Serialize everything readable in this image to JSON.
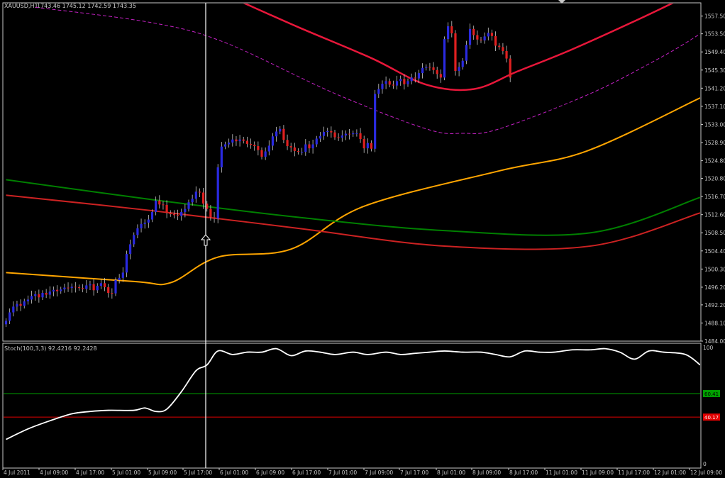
{
  "header": {
    "symbol_label": "XAUUSD,H1",
    "ohlc_label": "1743.46 1745.12 1742.59 1743.35"
  },
  "colors": {
    "background": "#000000",
    "frame": "#c8c8c8",
    "text": "#c8c8c8",
    "bull_candle": "#2a2ae0",
    "bear_candle": "#e02020",
    "ma_orange": "#ffa500",
    "ma_green": "#008000",
    "ma_red": "#cc2222",
    "env_upper": "#e8173a",
    "env_dashed": "#c020c0",
    "stoch_line": "#ffffff",
    "level_high": "#00a000",
    "level_low": "#e00000",
    "crosshair": "#ffffff"
  },
  "chart_data": [
    {
      "type": "candlestick",
      "title": "XAUUSD,H1",
      "ylim": [
        1484.0,
        1560.5
      ],
      "ytick_labels": [
        "1557.50",
        "1553.50",
        "1549.40",
        "1545.30",
        "1541.20",
        "1537.10",
        "1533.00",
        "1528.90",
        "1524.80",
        "1520.80",
        "1516.70",
        "1512.60",
        "1508.50",
        "1504.40",
        "1500.30",
        "1496.20",
        "1492.20",
        "1488.10",
        "1484.00"
      ],
      "xtick_labels": [
        "4 Jul 2011",
        "4 Jul 09:00",
        "4 Jul 17:00",
        "5 Jul 01:00",
        "5 Jul 09:00",
        "5 Jul 17:00",
        "6 Jul 01:00",
        "6 Jul 09:00",
        "6 Jul 17:00",
        "7 Jul 01:00",
        "7 Jul 09:00",
        "7 Jul 17:00",
        "8 Jul 01:00",
        "8 Jul 09:00",
        "8 Jul 17:00",
        "11 Jul 01:00",
        "11 Jul 09:00",
        "11 Jul 17:00",
        "12 Jul 01:00",
        "12 Jul 09:00"
      ],
      "closes": [
        1488.6,
        1490.5,
        1491.8,
        1492.4,
        1492.0,
        1493.0,
        1493.4,
        1494.2,
        1494.6,
        1493.9,
        1494.9,
        1494.5,
        1495.2,
        1495.6,
        1495.3,
        1495.7,
        1496.1,
        1496.0,
        1496.3,
        1496.2,
        1496.0,
        1495.8,
        1496.6,
        1496.9,
        1495.5,
        1496.5,
        1497.1,
        1496.2,
        1494.9,
        1494.8,
        1497.8,
        1498.3,
        1499.5,
        1503.7,
        1505.9,
        1508.0,
        1509.5,
        1510.5,
        1510.8,
        1511.5,
        1513.2,
        1515.8,
        1514.9,
        1514.8,
        1513.0,
        1512.7,
        1512.5,
        1512.3,
        1513.2,
        1513.9,
        1515.4,
        1516.2,
        1517.8,
        1517.6,
        1515.1,
        1513.9,
        1512.0,
        1511.7,
        1523.3,
        1528.0,
        1528.5,
        1528.9,
        1529.6,
        1529.2,
        1529.6,
        1529.3,
        1528.6,
        1528.4,
        1528.1,
        1527.2,
        1525.7,
        1526.9,
        1528.2,
        1530.3,
        1531.4,
        1532.0,
        1529.5,
        1528.1,
        1527.8,
        1527.0,
        1526.8,
        1526.8,
        1528.5,
        1527.6,
        1528.5,
        1529.8,
        1530.4,
        1531.3,
        1531.5,
        1531.2,
        1530.1,
        1530.0,
        1530.5,
        1530.9,
        1530.8,
        1531.0,
        1531.0,
        1529.7,
        1527.6,
        1528.8,
        1527.5,
        1539.9,
        1541.0,
        1542.2,
        1542.8,
        1542.0,
        1541.8,
        1542.8,
        1543.3,
        1542.1,
        1542.8,
        1543.6,
        1543.4,
        1544.6,
        1545.8,
        1546.0,
        1545.9,
        1545.3,
        1544.4,
        1543.6,
        1552.3,
        1555.2,
        1553.6,
        1545.1,
        1546.0,
        1547.4,
        1551.0,
        1554.6,
        1553.2,
        1552.2,
        1552.0,
        1552.9,
        1553.7,
        1553.0,
        1550.8,
        1550.5,
        1549.6,
        1547.9,
        1543.6
      ],
      "overlays": [
        {
          "name": "MA orange",
          "values": [
            [
              0,
              1499.5
            ],
            [
              35,
              1497.5
            ],
            [
              45,
              1497.2
            ],
            [
              58,
              1503.0
            ],
            [
              78,
              1504.8
            ],
            [
              98,
              1514.5
            ],
            [
              135,
              1522.5
            ],
            [
              159,
              1527.0
            ],
            [
              190,
              1539.0
            ]
          ]
        },
        {
          "name": "MA green",
          "values": [
            [
              0,
              1520.5
            ],
            [
              40,
              1516.0
            ],
            [
              80,
              1512.0
            ],
            [
              120,
              1509.0
            ],
            [
              160,
              1508.5
            ],
            [
              190,
              1516.5
            ]
          ]
        },
        {
          "name": "MA red",
          "values": [
            [
              0,
              1517.0
            ],
            [
              40,
              1513.5
            ],
            [
              80,
              1509.5
            ],
            [
              120,
              1505.5
            ],
            [
              160,
              1505.5
            ],
            [
              190,
              1513.0
            ]
          ]
        },
        {
          "name": "Envelope upper",
          "values": [
            [
              65,
              1560.5
            ],
            [
              80,
              1555.0
            ],
            [
              100,
              1548.0
            ],
            [
              115,
              1542.0
            ],
            [
              128,
              1541.0
            ],
            [
              140,
              1545.0
            ],
            [
              155,
              1550.0
            ],
            [
              175,
              1557.5
            ],
            [
              190,
              1563.5
            ]
          ]
        },
        {
          "name": "Envelope dashed",
          "values": [
            [
              8,
              1559.5
            ],
            [
              40,
              1556.0
            ],
            [
              60,
              1551.5
            ],
            [
              90,
              1540.0
            ],
            [
              115,
              1532.0
            ],
            [
              125,
              1531.0
            ],
            [
              135,
              1532.0
            ],
            [
              160,
              1540.0
            ],
            [
              180,
              1548.5
            ],
            [
              190,
              1553.5
            ]
          ]
        }
      ]
    },
    {
      "type": "line",
      "title": "Stoch(100,3,3) 92.4216 92.2428",
      "ylim": [
        0,
        100
      ],
      "ytick_labels": [
        "100",
        "0"
      ],
      "levels": [
        {
          "label": "60.41",
          "value": 60.4
        },
        {
          "label": "40.17",
          "value": 40.17
        }
      ],
      "series": [
        {
          "name": "",
          "values": [
            [
              0,
              21
            ],
            [
              6,
              30
            ],
            [
              12,
              37
            ],
            [
              18,
              43
            ],
            [
              23,
              45
            ],
            [
              28,
              46
            ],
            [
              35,
              46
            ],
            [
              38,
              48
            ],
            [
              41,
              45
            ],
            [
              44,
              47
            ],
            [
              48,
              62
            ],
            [
              52,
              80
            ],
            [
              55,
              85
            ],
            [
              58,
              97
            ],
            [
              62,
              94
            ],
            [
              66,
              96
            ],
            [
              70,
              96
            ],
            [
              74,
              99
            ],
            [
              78,
              93
            ],
            [
              82,
              97
            ],
            [
              86,
              96
            ],
            [
              90,
              94
            ],
            [
              95,
              96
            ],
            [
              99,
              94
            ],
            [
              104,
              96
            ],
            [
              108,
              94
            ],
            [
              112,
              95
            ],
            [
              116,
              96
            ],
            [
              120,
              97
            ],
            [
              125,
              96
            ],
            [
              130,
              96
            ],
            [
              134,
              94
            ],
            [
              138,
              92
            ],
            [
              142,
              97
            ],
            [
              146,
              96
            ],
            [
              150,
              96
            ],
            [
              155,
              98
            ],
            [
              160,
              98
            ],
            [
              164,
              99
            ],
            [
              168,
              96
            ],
            [
              172,
              90
            ],
            [
              176,
              97
            ],
            [
              180,
              96
            ],
            [
              186,
              94
            ],
            [
              190,
              85
            ]
          ]
        }
      ]
    }
  ]
}
